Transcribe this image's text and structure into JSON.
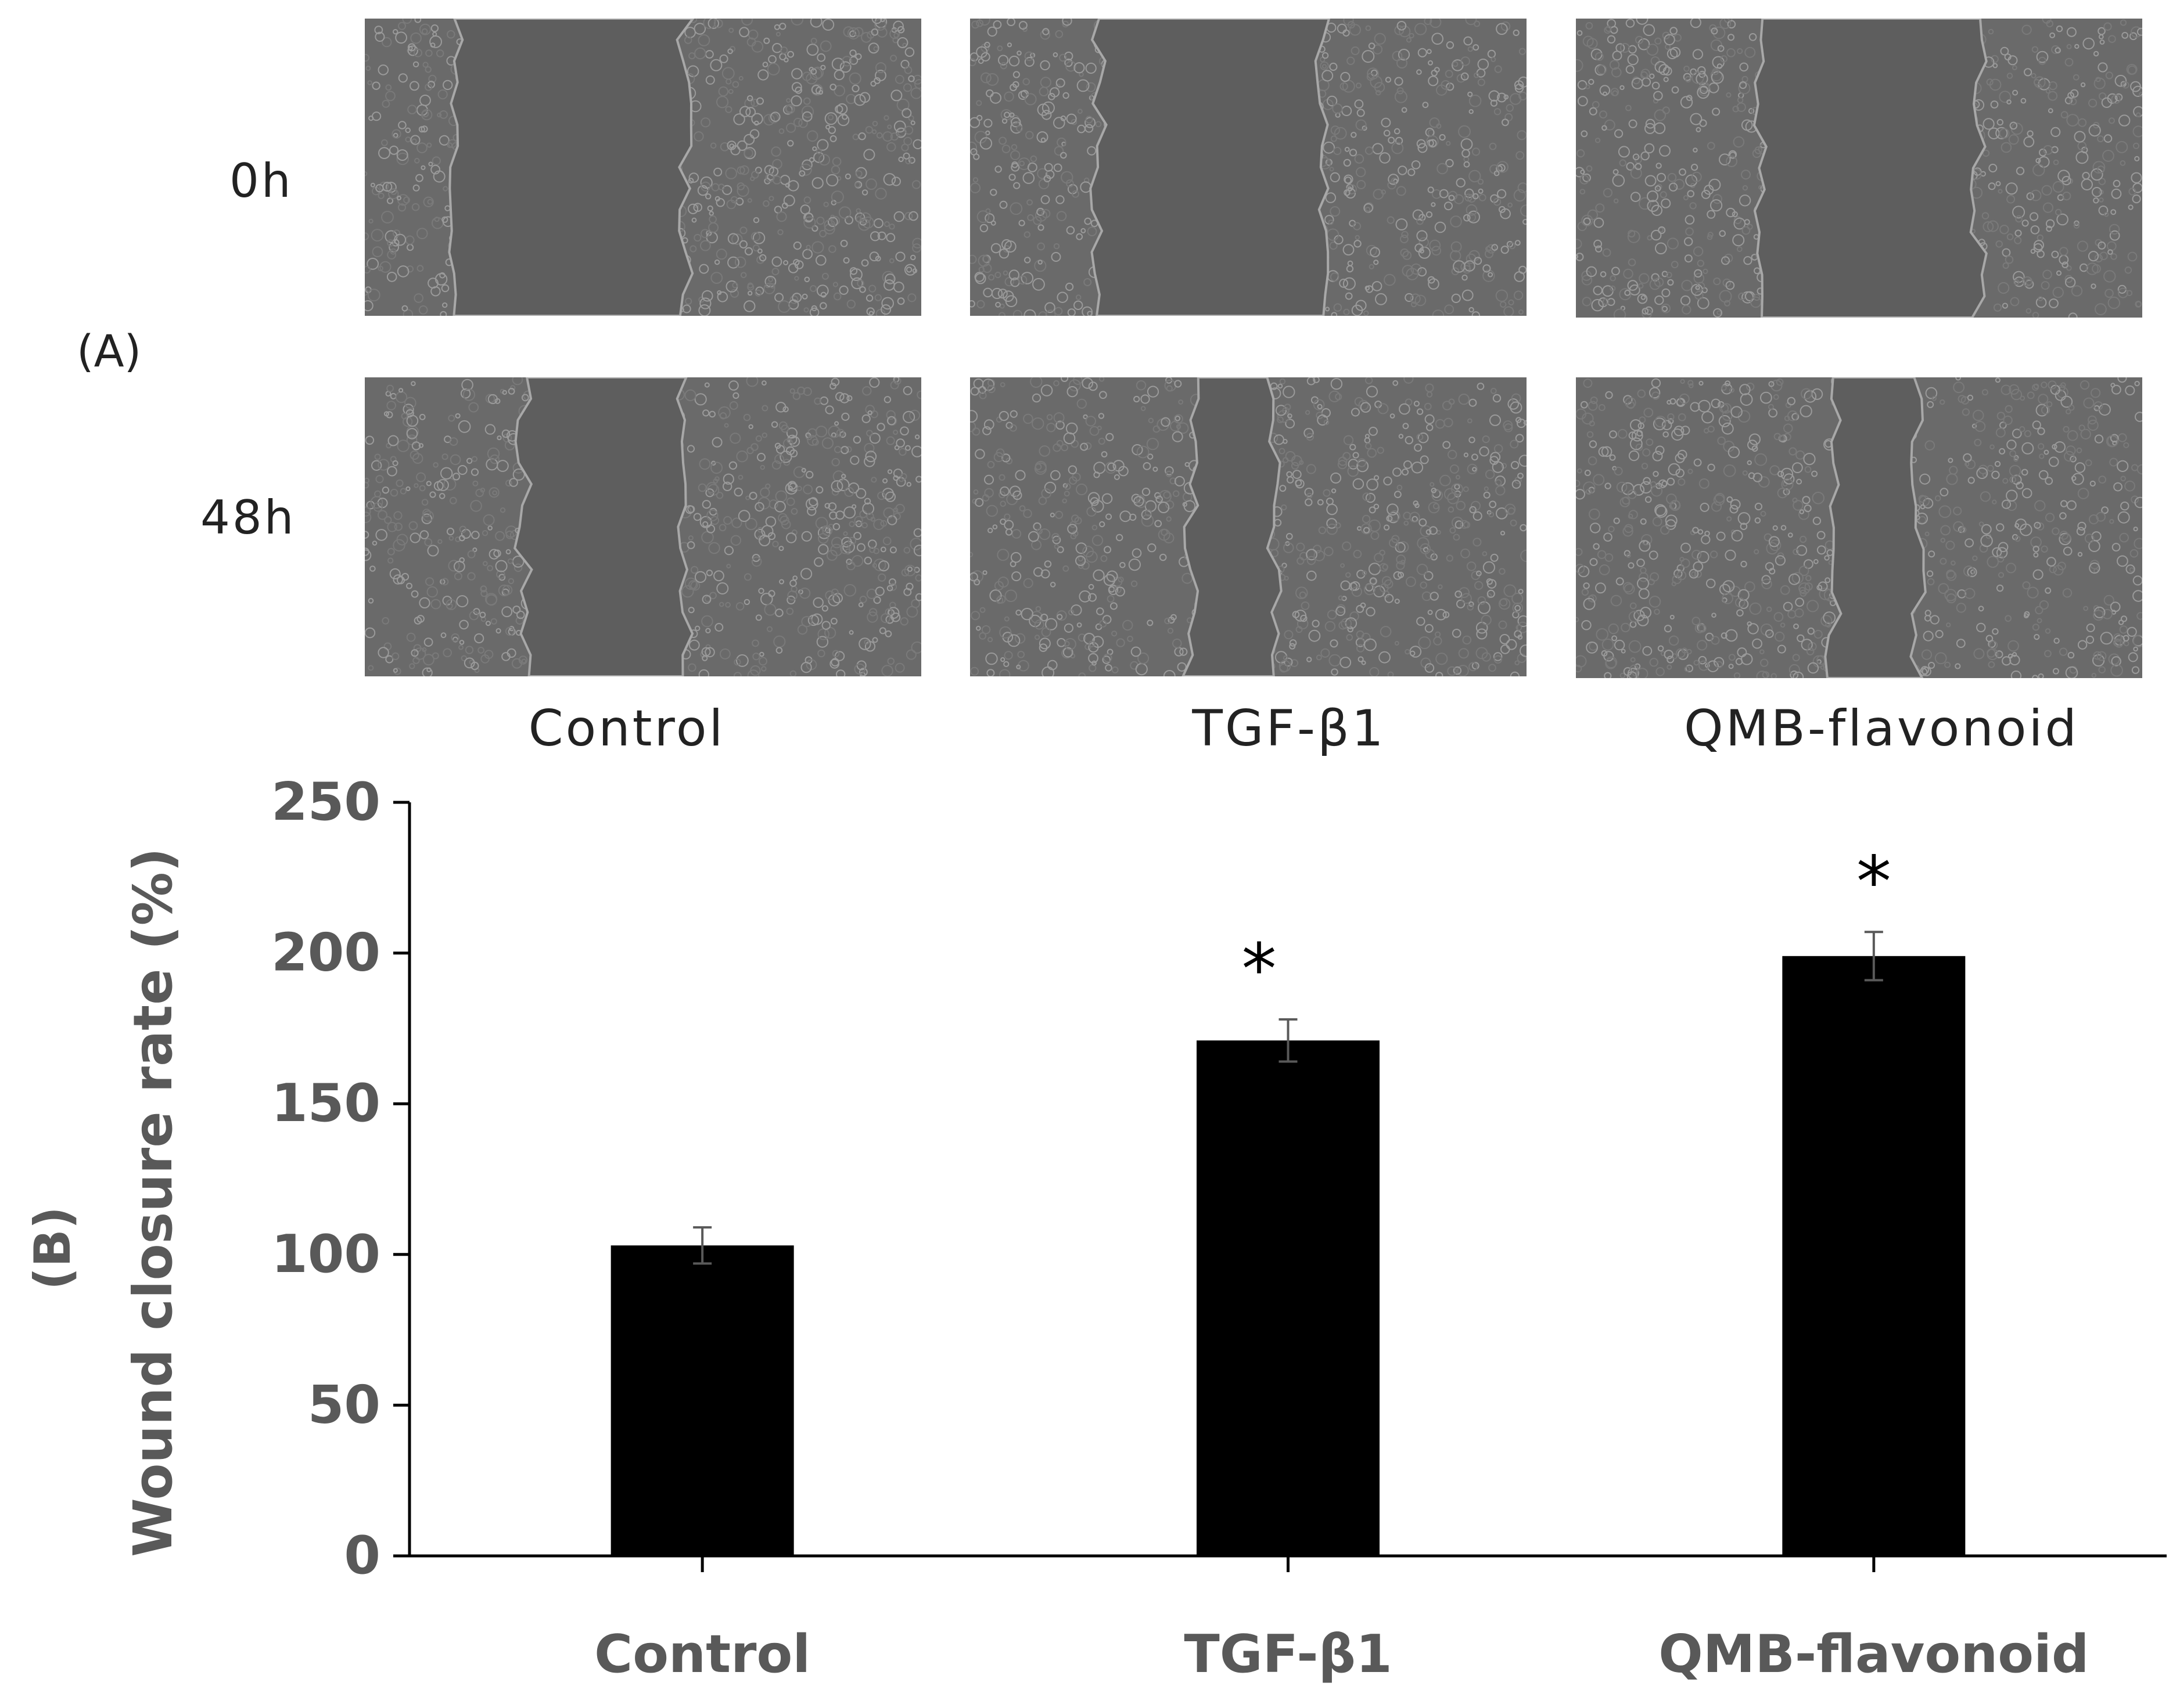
{
  "panel_a": {
    "label": "(A)",
    "row_labels": [
      "0h",
      "48h"
    ],
    "column_labels": [
      "Control",
      "TGF-β1",
      "QMB-flavonoid"
    ],
    "images": [
      {
        "row": "0h",
        "column": "Control",
        "wound_width_fraction": 0.41
      },
      {
        "row": "0h",
        "column": "TGF-β1",
        "wound_width_fraction": 0.4
      },
      {
        "row": "0h",
        "column": "QMB-flavonoid",
        "wound_width_fraction": 0.38
      },
      {
        "row": "48h",
        "column": "Control",
        "wound_width_fraction": 0.29
      },
      {
        "row": "48h",
        "column": "TGF-β1",
        "wound_width_fraction": 0.15
      },
      {
        "row": "48h",
        "column": "QMB-flavonoid",
        "wound_width_fraction": 0.15
      }
    ],
    "colors": {
      "background": "#6a6a6a",
      "cells": "#8c8c8c",
      "wound": "#5e5e5e"
    }
  },
  "panel_b_label": "(B)",
  "chart_data": {
    "type": "bar",
    "categories": [
      "Control",
      "TGF-β1",
      "QMB-flavonoid"
    ],
    "values": [
      103,
      171,
      199
    ],
    "errors": [
      6,
      7,
      8
    ],
    "annotations": [
      "",
      "*",
      "*"
    ],
    "title": "",
    "xlabel": "",
    "ylabel": "Wound closure rate (%)",
    "ylim": [
      0,
      250
    ],
    "yticks": [
      0,
      50,
      100,
      150,
      200,
      250
    ],
    "grid": false,
    "legend": "none",
    "colors": {
      "bar": "#000000",
      "axis": "#000000",
      "tick_label": "#595959",
      "error_bar": "#595959"
    }
  }
}
